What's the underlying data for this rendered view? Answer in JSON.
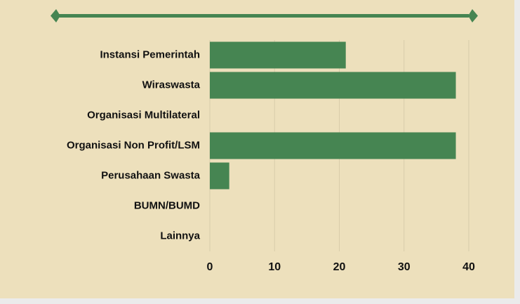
{
  "chart_data": {
    "type": "bar",
    "orientation": "horizontal",
    "categories": [
      "Instansi Pemerintah",
      "Wiraswasta",
      "Organisasi Multilateral",
      "Organisasi Non Profit/LSM",
      "Perusahaan Swasta",
      "BUMN/BUMD",
      "Lainnya"
    ],
    "values": [
      21,
      38,
      0,
      38,
      3,
      0,
      0
    ],
    "color": "#468552",
    "xlim": [
      0,
      40
    ],
    "xticks": [
      0,
      10,
      20,
      30,
      40
    ],
    "grid": true
  }
}
